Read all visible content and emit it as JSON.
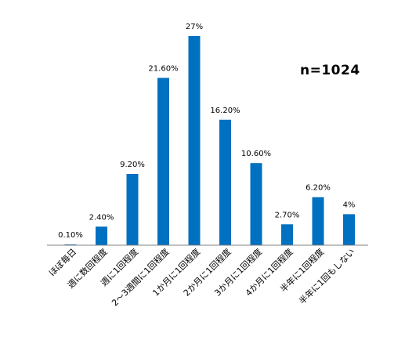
{
  "chart_data": {
    "type": "bar",
    "categories": [
      "ほぼ毎日",
      "週に数回程度",
      "週に1回程度",
      "2～3週間に1回程度",
      "1か月に1回程度",
      "2か月に1回程度",
      "3か月に1回程度",
      "4か月に1回程度",
      "半年に1回程度",
      "半年に1回もしない"
    ],
    "values": [
      0.1,
      2.4,
      9.2,
      21.6,
      27,
      16.2,
      10.6,
      2.7,
      6.2,
      4
    ],
    "data_labels": [
      "0.10%",
      "2.40%",
      "9.20%",
      "21.60%",
      "27%",
      "16.20%",
      "10.60%",
      "2.70%",
      "6.20%",
      "4%"
    ],
    "annotation": "n=1024",
    "ylim": [
      0,
      27
    ],
    "grid": false,
    "bar_color": "#0070C0",
    "axis_color": "#808080"
  }
}
